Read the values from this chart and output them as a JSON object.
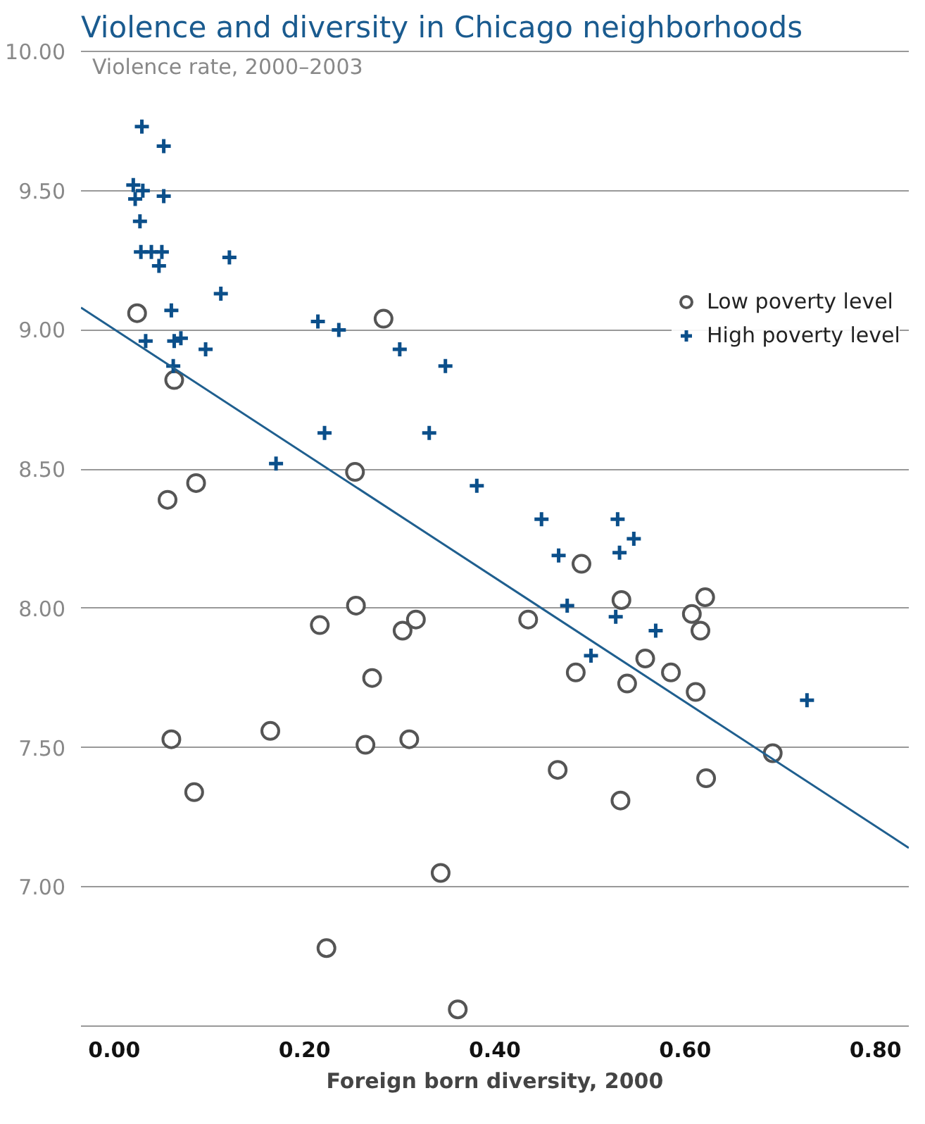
{
  "chart_data": {
    "type": "scatter",
    "title": "Violence and diversity in Chicago neighborhoods",
    "xlabel": "Foreign born diversity, 2000",
    "ylabel": "Violence rate, 2000–2003",
    "xlim": [
      -0.035,
      0.835
    ],
    "ylim": [
      6.5,
      10.0
    ],
    "xticks": [
      {
        "value": 0,
        "label": "0.00"
      },
      {
        "value": 0.2,
        "label": "0.20"
      },
      {
        "value": 0.4,
        "label": "0.40"
      },
      {
        "value": 0.6,
        "label": "0.60"
      },
      {
        "value": 0.8,
        "label": "0.80"
      }
    ],
    "yticks": [
      {
        "value": 6.5,
        "label": null
      },
      {
        "value": 7,
        "label": "7.00"
      },
      {
        "value": 7.5,
        "label": "7.50"
      },
      {
        "value": 8,
        "label": "8.00"
      },
      {
        "value": 8.5,
        "label": "8.50"
      },
      {
        "value": 9,
        "label": "9.00"
      },
      {
        "value": 9.5,
        "label": "9.50"
      },
      {
        "value": 10,
        "label": "10.00"
      }
    ],
    "grid": "y",
    "legend": "top right",
    "series": [
      {
        "name": "Low poverty level",
        "color": "#555555",
        "marker": "circle",
        "x": [
          0.024,
          0.283,
          0.063,
          0.253,
          0.086,
          0.056,
          0.216,
          0.254,
          0.303,
          0.317,
          0.271,
          0.06,
          0.164,
          0.264,
          0.31,
          0.084,
          0.343,
          0.223,
          0.361,
          0.491,
          0.533,
          0.621,
          0.607,
          0.616,
          0.435,
          0.558,
          0.585,
          0.485,
          0.539,
          0.611,
          0.692,
          0.466,
          0.622,
          0.532
        ],
        "values": [
          9.06,
          9.04,
          8.82,
          8.49,
          8.45,
          8.39,
          7.94,
          8.01,
          7.92,
          7.96,
          7.75,
          7.53,
          7.56,
          7.51,
          7.53,
          7.34,
          7.05,
          6.78,
          6.56,
          8.16,
          8.03,
          8.04,
          7.98,
          7.92,
          7.96,
          7.82,
          7.77,
          7.77,
          7.73,
          7.7,
          7.48,
          7.42,
          7.39,
          7.31
        ]
      },
      {
        "name": "High poverty level",
        "color": "#0b4f8a",
        "marker": "cross",
        "x": [
          0.029,
          0.052,
          0.02,
          0.03,
          0.022,
          0.052,
          0.027,
          0.028,
          0.039,
          0.05,
          0.047,
          0.121,
          0.112,
          0.06,
          0.214,
          0.236,
          0.033,
          0.063,
          0.07,
          0.096,
          0.3,
          0.062,
          0.348,
          0.221,
          0.331,
          0.17,
          0.381,
          0.449,
          0.529,
          0.546,
          0.467,
          0.531,
          0.476,
          0.527,
          0.569,
          0.501,
          0.728
        ],
        "values": [
          9.73,
          9.66,
          9.52,
          9.5,
          9.47,
          9.48,
          9.39,
          9.28,
          9.28,
          9.28,
          9.23,
          9.26,
          9.13,
          9.07,
          9.03,
          9.0,
          8.96,
          8.96,
          8.97,
          8.93,
          8.93,
          8.87,
          8.87,
          8.63,
          8.63,
          8.52,
          8.44,
          8.32,
          8.32,
          8.25,
          8.19,
          8.2,
          8.01,
          7.97,
          7.92,
          7.83,
          7.67
        ]
      },
      {
        "type": "line",
        "color": "#1f5f8f",
        "x": [
          -0.035,
          0.835
        ],
        "values": [
          9.08,
          7.14
        ]
      }
    ]
  }
}
